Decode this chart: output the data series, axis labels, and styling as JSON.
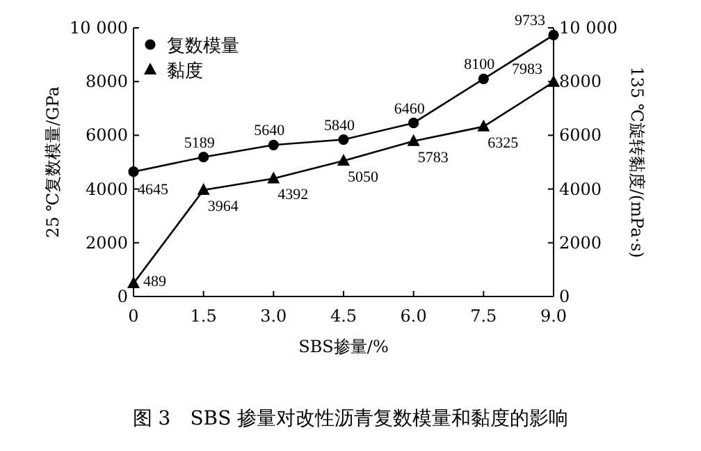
{
  "chart_data": {
    "type": "line",
    "title": "图 3　SBS 掺量对改性沥青复数模量和黏度的影响",
    "xlabel": "SBS掺量/%",
    "ylabel": "25 ℃复数模量/GPa",
    "y2label": "135 ℃旋转黏度/(mPa·s)",
    "x": [
      0,
      1.5,
      3,
      4.5,
      6,
      7.5,
      9
    ],
    "xlim": [
      0,
      9
    ],
    "xticks": [
      0,
      1.5,
      {
        "value": 3,
        "label": "3.0"
      },
      4.5,
      {
        "value": 6,
        "label": "6.0"
      },
      7.5,
      {
        "value": 9,
        "label": "9.0"
      }
    ],
    "ylim": [
      0,
      10000
    ],
    "yticks": [
      0,
      2000,
      4000,
      6000,
      8000,
      {
        "value": 10000,
        "label": "10 000"
      }
    ],
    "y2lim": [
      0,
      10000
    ],
    "y2ticks": [
      0,
      2000,
      4000,
      6000,
      8000,
      {
        "value": 10000,
        "label": "10 000"
      }
    ],
    "series": [
      {
        "name": "复数模量",
        "color": "#000000",
        "marker": "circle",
        "values": [
          4645,
          5189,
          5640,
          5840,
          6460,
          8100,
          9733
        ]
      },
      {
        "name": "黏度",
        "color": "#000000",
        "marker": "triangle",
        "axis": "y2",
        "values": [
          489,
          3964,
          4392,
          5050,
          5783,
          6325,
          7983
        ]
      }
    ],
    "data_labels": true,
    "legend": "top left",
    "grid": false
  }
}
